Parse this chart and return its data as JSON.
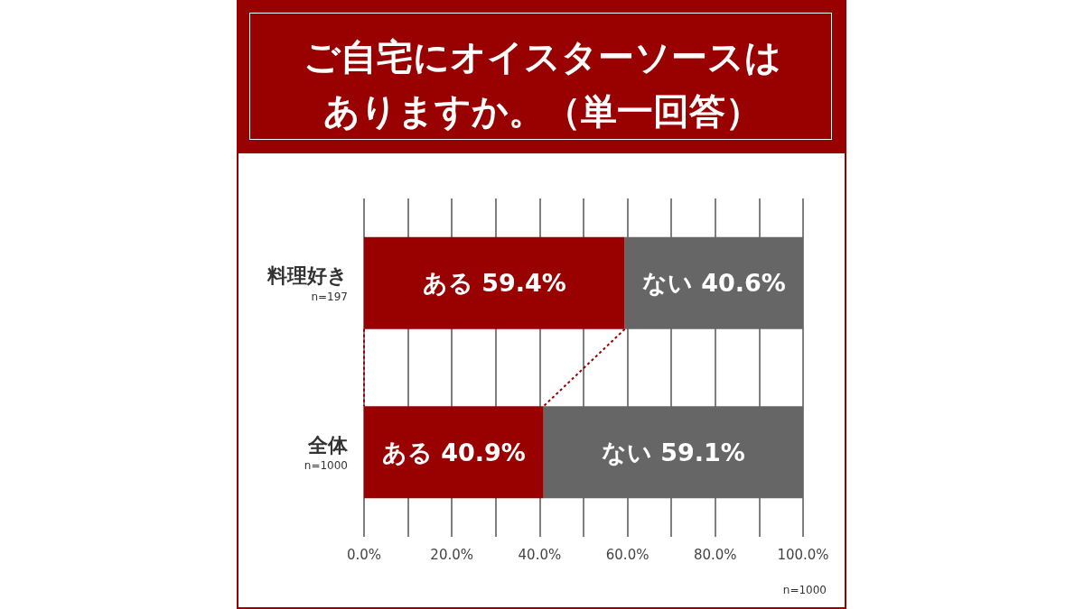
{
  "chart_data": {
    "type": "bar",
    "orientation": "horizontal",
    "stacked": true,
    "title": "ご自宅にオイスターソースはありますか。（単一回答）",
    "categories": [
      "料理好き\nn=197",
      "全体\nn=1000"
    ],
    "series": [
      {
        "color": "#990000",
        "values": [
          59.4,
          40.9
        ],
        "value_labels": [
          "ある 59.4%",
          "ある 40.9%"
        ]
      },
      {
        "color": "#666666",
        "values": [
          40.6,
          59.1
        ],
        "value_labels": [
          "ない 40.6%",
          "ない 59.1%"
        ]
      }
    ],
    "xlim": [
      0,
      100
    ],
    "xticks": [
      {
        "value": 0,
        "label": "0.0%"
      },
      {
        "value": 10,
        "label": null
      },
      {
        "value": 20,
        "label": "20.0%"
      },
      {
        "value": 30,
        "label": null
      },
      {
        "value": 40,
        "label": "40.0%"
      },
      {
        "value": 50,
        "label": null
      },
      {
        "value": 60,
        "label": "60.0%"
      },
      {
        "value": 70,
        "label": null
      },
      {
        "value": 80,
        "label": "80.0%"
      },
      {
        "value": 90,
        "label": null
      },
      {
        "value": 100,
        "label": "100.0%"
      }
    ],
    "grid": "x",
    "annotations": [
      "n=1000"
    ]
  }
}
